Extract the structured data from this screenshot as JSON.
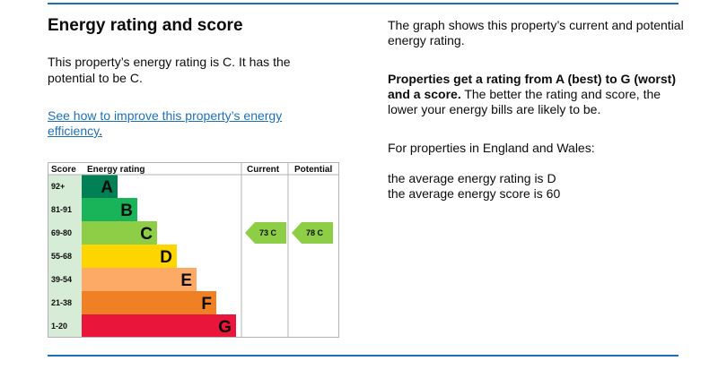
{
  "left": {
    "title": "Energy rating and score",
    "intro": "This property’s energy rating is C. It has the potential to be C.",
    "link_text": "See how to improve this property’s energy efficiency",
    "link_suffix": "."
  },
  "right": {
    "graph_note": "The graph shows this property’s current and potential energy rating.",
    "rating_bold": "Properties get a rating from A (best) to G (worst) and a score.",
    "rating_rest": " The better the rating and score, the lower your energy bills are likely to be.",
    "region_note": "For properties in England and Wales:",
    "average_rating": "the average energy rating is D",
    "average_score": "the average energy score is 60"
  },
  "chart_data": {
    "type": "bar",
    "headers": {
      "score": "Score",
      "rating": "Energy rating",
      "current": "Current",
      "potential": "Potential"
    },
    "bands": [
      {
        "letter": "A",
        "score_range": "92+",
        "color": "#008054"
      },
      {
        "letter": "B",
        "score_range": "81-91",
        "color": "#19b459"
      },
      {
        "letter": "C",
        "score_range": "69-80",
        "color": "#8dce46"
      },
      {
        "letter": "D",
        "score_range": "55-68",
        "color": "#ffd500"
      },
      {
        "letter": "E",
        "score_range": "39-54",
        "color": "#fcaa65"
      },
      {
        "letter": "F",
        "score_range": "21-38",
        "color": "#ef8023"
      },
      {
        "letter": "G",
        "score_range": "1-20",
        "color": "#e9153b"
      }
    ],
    "current": {
      "score": 73,
      "band": "C",
      "label": "73 C"
    },
    "potential": {
      "score": 78,
      "band": "C",
      "label": "78 C"
    },
    "score_column_color": "#d7ecd6",
    "border_color": "#b1b4b6"
  }
}
